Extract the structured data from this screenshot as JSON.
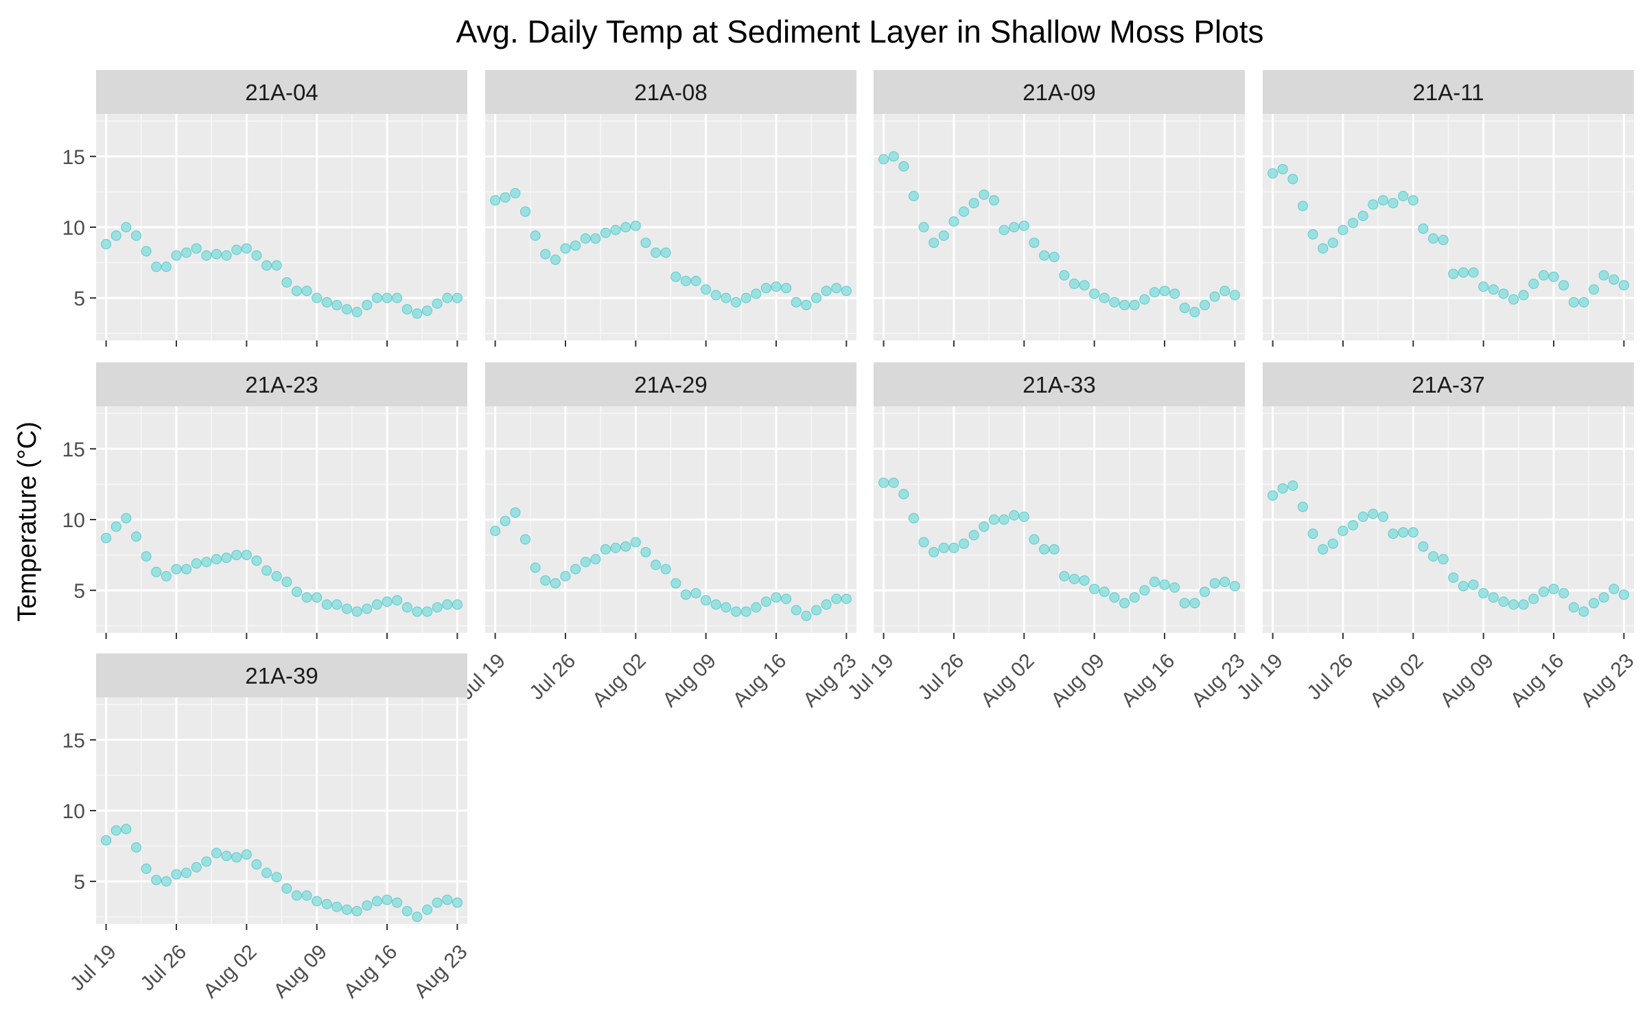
{
  "chart_data": {
    "type": "scatter",
    "title": "Avg. Daily Temp at Sediment Layer in Shallow Moss Plots",
    "xlabel": "",
    "ylabel": "Temperature (°C)",
    "x_start": "Jul 19",
    "x_range": [
      "Jul 18",
      "Aug 24"
    ],
    "x_ticks": [
      {
        "date": "Jul 19",
        "label": "Jul 19"
      },
      {
        "date": "Jul 26",
        "label": "Jul 26"
      },
      {
        "date": "Aug 02",
        "label": "Aug 02"
      },
      {
        "date": "Aug 09",
        "label": "Aug 09"
      },
      {
        "date": "Aug 16",
        "label": "Aug 16"
      },
      {
        "date": "Aug 23",
        "label": "Aug 23"
      }
    ],
    "y_ticks": [
      5,
      10,
      15
    ],
    "ylim": [
      2,
      18
    ],
    "grid": true,
    "facet_layout": {
      "ncol": 4,
      "nrow": 3
    },
    "point_color": "#7fdcdc",
    "panel_background": "#ebebeb",
    "strip_background": "#d9d9d9",
    "panels": [
      {
        "label": "21A-04",
        "values": [
          8.8,
          9.4,
          10.0,
          9.4,
          8.3,
          7.2,
          7.2,
          8.0,
          8.2,
          8.5,
          8.0,
          8.1,
          8.0,
          8.4,
          8.5,
          8.0,
          7.3,
          7.3,
          6.1,
          5.5,
          5.5,
          5.0,
          4.7,
          4.5,
          4.2,
          4.0,
          4.5,
          5.0,
          5.0,
          5.0,
          4.2,
          3.9,
          4.1,
          4.6,
          5.0,
          5.0
        ]
      },
      {
        "label": "21A-08",
        "values": [
          11.9,
          12.1,
          12.4,
          11.1,
          9.4,
          8.1,
          7.7,
          8.5,
          8.7,
          9.2,
          9.2,
          9.6,
          9.8,
          10.0,
          10.1,
          8.9,
          8.2,
          8.2,
          6.5,
          6.2,
          6.2,
          5.6,
          5.2,
          5.0,
          4.7,
          5.0,
          5.3,
          5.7,
          5.8,
          5.7,
          4.7,
          4.5,
          5.0,
          5.5,
          5.7,
          5.5
        ]
      },
      {
        "label": "21A-09",
        "values": [
          14.8,
          15.0,
          14.3,
          12.2,
          10.0,
          8.9,
          9.4,
          10.4,
          11.1,
          11.7,
          12.3,
          11.9,
          9.8,
          10.0,
          10.1,
          8.9,
          8.0,
          7.9,
          6.6,
          6.0,
          5.9,
          5.3,
          5.0,
          4.7,
          4.5,
          4.5,
          4.9,
          5.4,
          5.5,
          5.3,
          4.3,
          4.0,
          4.5,
          5.1,
          5.5,
          5.2
        ]
      },
      {
        "label": "21A-11",
        "values": [
          13.8,
          14.1,
          13.4,
          11.5,
          9.5,
          8.5,
          8.9,
          9.8,
          10.3,
          10.8,
          11.6,
          11.9,
          11.7,
          12.2,
          11.9,
          9.9,
          9.2,
          9.1,
          6.7,
          6.8,
          6.8,
          5.8,
          5.6,
          5.3,
          4.9,
          5.2,
          6.0,
          6.6,
          6.5,
          5.9,
          4.7,
          4.7,
          5.6,
          6.6,
          6.3,
          5.9
        ]
      },
      {
        "label": "21A-23",
        "values": [
          8.7,
          9.5,
          10.1,
          8.8,
          7.4,
          6.3,
          6.0,
          6.5,
          6.5,
          6.9,
          7.0,
          7.2,
          7.3,
          7.5,
          7.5,
          7.1,
          6.4,
          6.0,
          5.6,
          4.9,
          4.5,
          4.5,
          4.0,
          4.0,
          3.7,
          3.5,
          3.7,
          4.0,
          4.2,
          4.3,
          3.8,
          3.5,
          3.5,
          3.8,
          4.0,
          4.0
        ]
      },
      {
        "label": "21A-29",
        "values": [
          9.2,
          9.9,
          10.5,
          8.6,
          6.6,
          5.7,
          5.5,
          6.0,
          6.5,
          7.0,
          7.2,
          7.9,
          8.0,
          8.1,
          8.4,
          7.7,
          6.8,
          6.5,
          5.5,
          4.7,
          4.8,
          4.3,
          4.0,
          3.8,
          3.5,
          3.5,
          3.8,
          4.2,
          4.5,
          4.4,
          3.6,
          3.2,
          3.6,
          4.0,
          4.4,
          4.4
        ]
      },
      {
        "label": "21A-33",
        "values": [
          12.6,
          12.6,
          11.8,
          10.1,
          8.4,
          7.7,
          8.0,
          8.0,
          8.3,
          8.9,
          9.5,
          10.0,
          10.0,
          10.3,
          10.2,
          8.6,
          7.9,
          7.9,
          6.0,
          5.8,
          5.7,
          5.1,
          4.9,
          4.5,
          4.1,
          4.5,
          5.0,
          5.6,
          5.4,
          5.2,
          4.1,
          4.1,
          4.9,
          5.5,
          5.6,
          5.3
        ]
      },
      {
        "label": "21A-37",
        "values": [
          11.7,
          12.2,
          12.4,
          10.9,
          9.0,
          7.9,
          8.3,
          9.2,
          9.6,
          10.2,
          10.4,
          10.2,
          9.0,
          9.1,
          9.1,
          8.1,
          7.4,
          7.2,
          5.9,
          5.3,
          5.4,
          4.8,
          4.5,
          4.2,
          4.0,
          4.0,
          4.4,
          4.9,
          5.1,
          4.8,
          3.8,
          3.5,
          4.1,
          4.5,
          5.1,
          4.7
        ]
      },
      {
        "label": "21A-39",
        "values": [
          7.9,
          8.6,
          8.7,
          7.4,
          5.9,
          5.1,
          5.0,
          5.5,
          5.6,
          6.0,
          6.4,
          7.0,
          6.8,
          6.7,
          6.9,
          6.2,
          5.6,
          5.3,
          4.5,
          4.0,
          4.0,
          3.6,
          3.4,
          3.2,
          3.0,
          2.9,
          3.3,
          3.6,
          3.7,
          3.5,
          2.9,
          2.5,
          3.0,
          3.5,
          3.7,
          3.5
        ]
      }
    ]
  }
}
